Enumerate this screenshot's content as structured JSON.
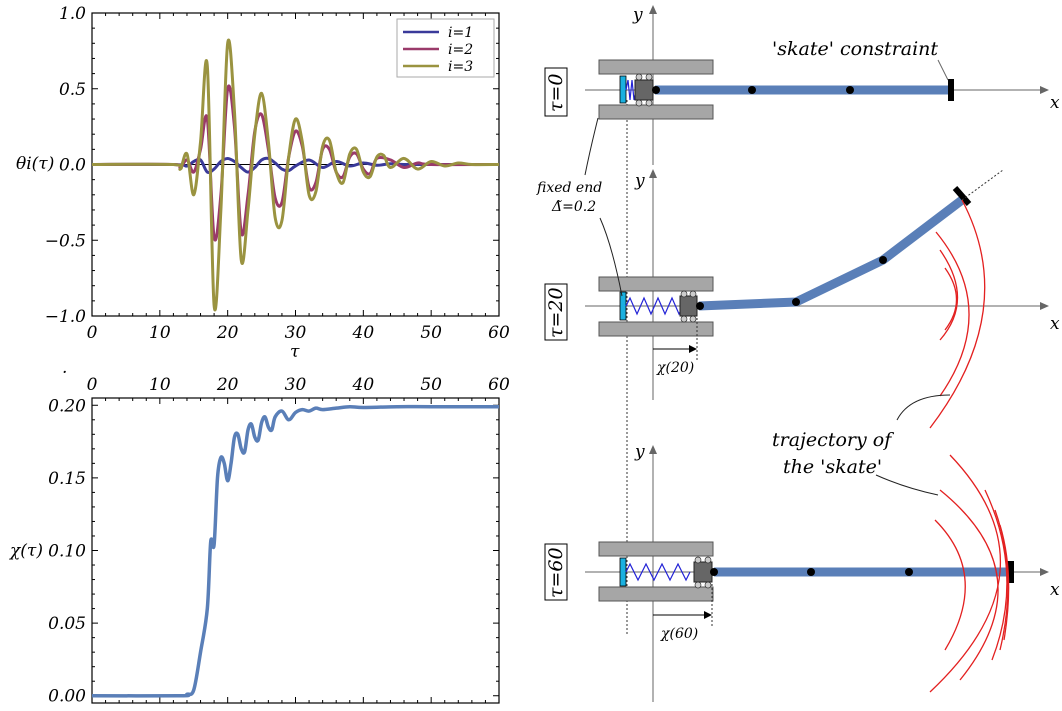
{
  "chart_data": [
    {
      "type": "line",
      "xlabel": "τ",
      "ylabel": "θi(τ)",
      "xlim": [
        0,
        60
      ],
      "ylim": [
        -1.0,
        1.0
      ],
      "x_ticks": [
        "0",
        "10",
        "20",
        "30",
        "40",
        "50",
        "60"
      ],
      "y_ticks": [
        "−1.0",
        "−0.5",
        "0.0",
        "0.5",
        "1.0"
      ],
      "legend_position": "top-right",
      "series": [
        {
          "name": "i=1",
          "color": "#3a3a9a",
          "x": [
            0,
            12,
            14,
            15,
            16,
            17,
            18,
            19,
            20,
            21,
            22,
            23,
            24,
            25,
            26,
            27,
            28,
            29,
            30,
            32,
            34,
            36,
            38,
            40,
            42,
            44,
            46,
            50,
            60
          ],
          "y": [
            0,
            0,
            -0.01,
            0.02,
            0.03,
            -0.05,
            -0.03,
            0.02,
            0.04,
            0.02,
            -0.02,
            -0.05,
            -0.02,
            0.03,
            0.04,
            0.01,
            -0.03,
            -0.04,
            -0.01,
            0.03,
            -0.02,
            0.02,
            -0.01,
            0.01,
            -0.005,
            0.005,
            0,
            0,
            0
          ]
        },
        {
          "name": "i=2",
          "color": "#9a3a6a",
          "x": [
            0,
            12,
            13,
            14,
            15,
            16,
            17,
            18,
            19,
            20,
            21,
            22,
            23,
            24,
            25,
            26,
            27,
            28,
            29,
            30,
            31,
            32,
            33,
            34,
            35,
            36,
            37,
            38,
            39,
            40,
            41,
            42,
            44,
            46,
            48,
            50,
            60
          ],
          "y": [
            0,
            0,
            -0.02,
            0.03,
            -0.05,
            0.1,
            0.3,
            -0.48,
            -0.2,
            0.5,
            0.25,
            -0.45,
            -0.2,
            0.22,
            0.33,
            0.1,
            -0.22,
            -0.25,
            0.05,
            0.22,
            0.12,
            -0.15,
            -0.12,
            0.1,
            0.1,
            -0.05,
            -0.08,
            0.05,
            0.07,
            -0.03,
            -0.06,
            0.04,
            0.03,
            -0.02,
            0.01,
            0,
            0
          ]
        },
        {
          "name": "i=3",
          "color": "#9a9340",
          "x": [
            0,
            12,
            13,
            14,
            15,
            16,
            17,
            18,
            19,
            20,
            21,
            22,
            23,
            24,
            25,
            26,
            27,
            28,
            29,
            30,
            31,
            32,
            33,
            34,
            35,
            36,
            37,
            38,
            39,
            40,
            41,
            42,
            43,
            44,
            46,
            48,
            50,
            52,
            54,
            56,
            60
          ],
          "y": [
            0,
            0,
            -0.03,
            0.07,
            -0.2,
            0.15,
            0.65,
            -0.93,
            -0.3,
            0.8,
            0.35,
            -0.63,
            -0.3,
            0.2,
            0.47,
            0.15,
            -0.35,
            -0.37,
            0.05,
            0.3,
            0.15,
            -0.2,
            -0.18,
            0.12,
            0.16,
            -0.05,
            -0.12,
            0.07,
            0.1,
            -0.05,
            -0.08,
            0.05,
            0.06,
            -0.02,
            0.04,
            -0.03,
            0.02,
            -0.01,
            0.01,
            0,
            0
          ]
        }
      ]
    },
    {
      "type": "line",
      "xlabel": "",
      "ylabel": "χ(τ)",
      "xlim": [
        0,
        60
      ],
      "ylim": [
        -0.005,
        0.205
      ],
      "x_ticks": [
        "0",
        "10",
        "20",
        "30",
        "40",
        "50",
        "60"
      ],
      "y_ticks": [
        "0.00",
        "0.05",
        "0.10",
        "0.15",
        "0.20"
      ],
      "series": [
        {
          "name": "",
          "color": "#5a7fb8",
          "x": [
            0,
            13,
            14,
            15,
            16,
            17,
            17.5,
            18,
            18.5,
            19,
            19.5,
            20,
            20.5,
            21,
            21.5,
            22,
            22.5,
            23,
            23.5,
            24,
            24.5,
            25,
            25.5,
            26,
            26.5,
            27,
            28,
            29,
            30,
            31,
            32,
            33,
            34,
            36,
            38,
            40,
            45,
            50,
            60
          ],
          "y": [
            0,
            0,
            0.001,
            0.004,
            0.03,
            0.06,
            0.106,
            0.104,
            0.15,
            0.164,
            0.16,
            0.148,
            0.16,
            0.178,
            0.18,
            0.17,
            0.168,
            0.183,
            0.187,
            0.178,
            0.176,
            0.188,
            0.192,
            0.185,
            0.183,
            0.192,
            0.196,
            0.19,
            0.195,
            0.197,
            0.196,
            0.198,
            0.197,
            0.198,
            0.199,
            0.1985,
            0.199,
            0.199,
            0.199
          ]
        }
      ]
    }
  ],
  "top_right_axis_label": "0",
  "diagram": {
    "axis_x_label": "x",
    "axis_y_label": "y",
    "panels": [
      {
        "tau_label": "τ=0",
        "chi_label": ""
      },
      {
        "tau_label": "τ=20",
        "chi_label": "χ(20)"
      },
      {
        "tau_label": "τ=60",
        "chi_label": "χ(60)"
      }
    ],
    "skate_label": "'skate' constraint",
    "fixed_end_line1": "fixed end",
    "fixed_end_line2": "Δ̃=0.2",
    "trajectory_line1": "trajectory of",
    "trajectory_line2": "the 'skate'"
  },
  "colors": {
    "rod": "#5a7fb8",
    "trajectory": "#e32020",
    "spring": "#2323d6",
    "wall": "#1ab0e0"
  }
}
